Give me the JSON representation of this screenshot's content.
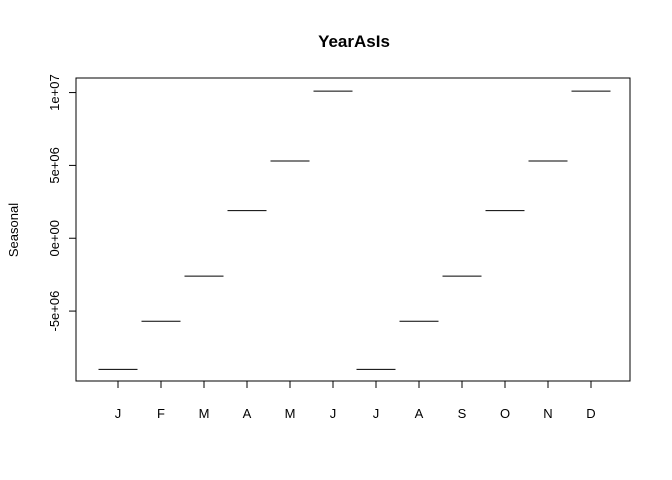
{
  "chart_data": {
    "type": "line",
    "title": "YearAsIs",
    "xlabel": "",
    "ylabel": "Seasonal",
    "categories": [
      "J",
      "F",
      "M",
      "A",
      "M",
      "J",
      "J",
      "A",
      "S",
      "O",
      "N",
      "D"
    ],
    "values": [
      -9000000,
      -5700000,
      -2600000,
      1900000,
      5300000,
      10100000,
      -9000000,
      -5700000,
      -2600000,
      1900000,
      5300000,
      10100000
    ],
    "yticks": [
      -5000000,
      0,
      5000000,
      10000000
    ],
    "ytick_labels": [
      "-5e+06",
      "0e+00",
      "5e+06",
      "1e+07"
    ],
    "ylim": [
      -9800000,
      11000000
    ],
    "grid": false,
    "legend": "none"
  }
}
